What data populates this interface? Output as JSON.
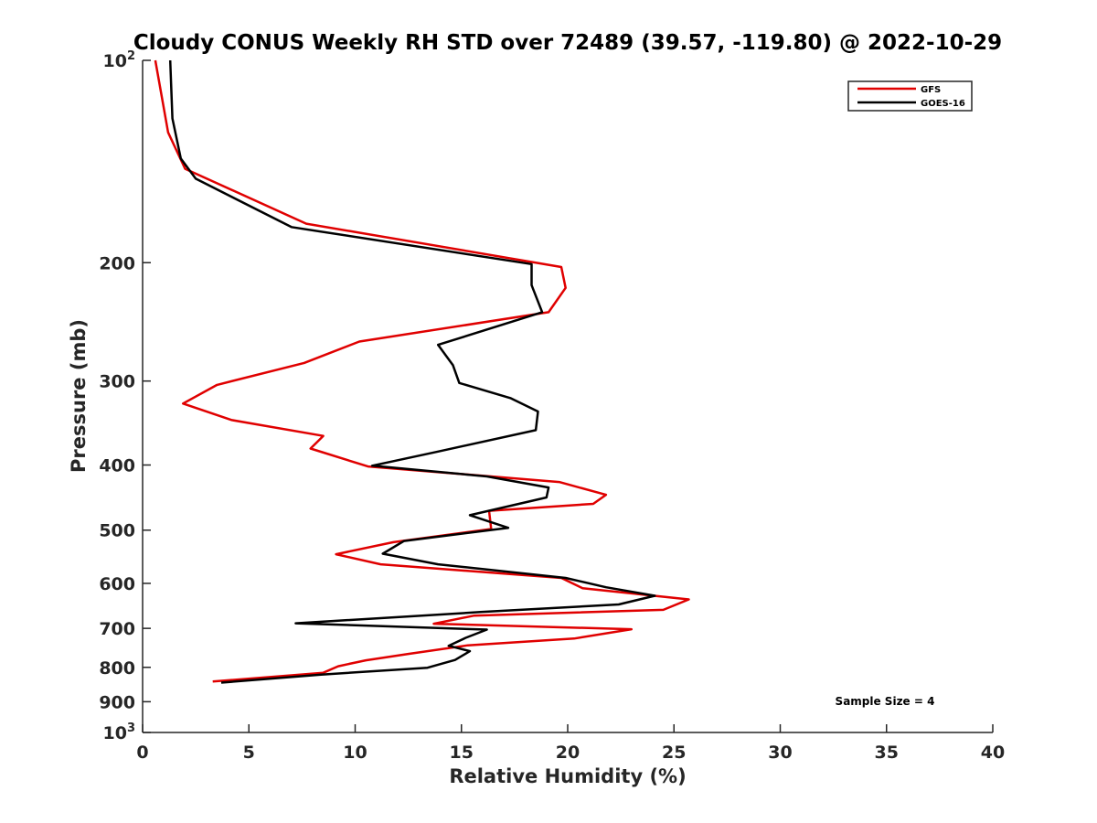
{
  "chart_data": {
    "type": "line",
    "title": "Cloudy CONUS Weekly RH STD over 72489 (39.57, -119.80) @ 2022-10-29",
    "xlabel": "Relative Humidity (%)",
    "ylabel": "Pressure (mb)",
    "xlim": [
      0,
      40
    ],
    "ylim": [
      100,
      1000
    ],
    "y_scale": "log",
    "y_reversed": true,
    "x_ticks": [
      0,
      5,
      10,
      15,
      20,
      25,
      30,
      35,
      40
    ],
    "y_ticks": [
      {
        "value": 100,
        "base": "10",
        "exp": "2",
        "label": ""
      },
      {
        "value": 200,
        "label": "200"
      },
      {
        "value": 300,
        "label": "300"
      },
      {
        "value": 400,
        "label": "400"
      },
      {
        "value": 500,
        "label": "500"
      },
      {
        "value": 600,
        "label": "600"
      },
      {
        "value": 700,
        "label": "700"
      },
      {
        "value": 800,
        "label": "800"
      },
      {
        "value": 900,
        "label": "900"
      },
      {
        "value": 1000,
        "base": "10",
        "exp": "3",
        "label": ""
      }
    ],
    "grid": false,
    "legend_position": "top-right",
    "annotation": "Sample Size = 4",
    "series": [
      {
        "name": "GFS",
        "color": "#e00000",
        "points": [
          [
            0.6,
            100
          ],
          [
            1.2,
            128
          ],
          [
            2.0,
            145
          ],
          [
            7.7,
            175
          ],
          [
            19.7,
            203
          ],
          [
            19.9,
            218
          ],
          [
            19.1,
            237
          ],
          [
            10.2,
            262
          ],
          [
            7.6,
            282
          ],
          [
            3.5,
            304
          ],
          [
            1.9,
            324
          ],
          [
            4.2,
            343
          ],
          [
            8.5,
            362
          ],
          [
            7.9,
            378
          ],
          [
            10.6,
            402
          ],
          [
            19.6,
            424
          ],
          [
            21.8,
            443
          ],
          [
            21.2,
            457
          ],
          [
            16.3,
            468
          ],
          [
            16.4,
            498
          ],
          [
            11.8,
            521
          ],
          [
            9.1,
            543
          ],
          [
            11.2,
            562
          ],
          [
            19.7,
            589
          ],
          [
            20.7,
            610
          ],
          [
            25.7,
            634
          ],
          [
            24.5,
            657
          ],
          [
            15.6,
            670
          ],
          [
            13.7,
            689
          ],
          [
            23.0,
            702
          ],
          [
            20.3,
            725
          ],
          [
            15.3,
            742
          ],
          [
            12.5,
            764
          ],
          [
            10.5,
            781
          ],
          [
            9.2,
            797
          ],
          [
            8.5,
            815
          ],
          [
            3.3,
            840
          ]
        ]
      },
      {
        "name": "GOES-16",
        "color": "#000000",
        "points": [
          [
            1.3,
            100
          ],
          [
            1.4,
            122
          ],
          [
            1.8,
            140
          ],
          [
            2.5,
            150
          ],
          [
            7.0,
            177
          ],
          [
            18.3,
            201
          ],
          [
            18.3,
            216
          ],
          [
            18.8,
            237
          ],
          [
            13.9,
            265
          ],
          [
            14.6,
            284
          ],
          [
            14.9,
            302
          ],
          [
            17.3,
            318
          ],
          [
            18.6,
            333
          ],
          [
            18.5,
            355
          ],
          [
            13.9,
            382
          ],
          [
            10.8,
            401
          ],
          [
            16.2,
            416
          ],
          [
            19.1,
            432
          ],
          [
            19.0,
            447
          ],
          [
            15.4,
            475
          ],
          [
            17.2,
            496
          ],
          [
            12.3,
            519
          ],
          [
            11.3,
            542
          ],
          [
            13.9,
            562
          ],
          [
            19.9,
            589
          ],
          [
            21.8,
            608
          ],
          [
            24.1,
            626
          ],
          [
            22.4,
            645
          ],
          [
            15.9,
            662
          ],
          [
            7.2,
            688
          ],
          [
            16.2,
            703
          ],
          [
            15.2,
            723
          ],
          [
            14.4,
            743
          ],
          [
            15.4,
            757
          ],
          [
            14.7,
            780
          ],
          [
            13.4,
            801
          ],
          [
            8.4,
            820
          ],
          [
            3.7,
            843
          ]
        ]
      }
    ]
  }
}
